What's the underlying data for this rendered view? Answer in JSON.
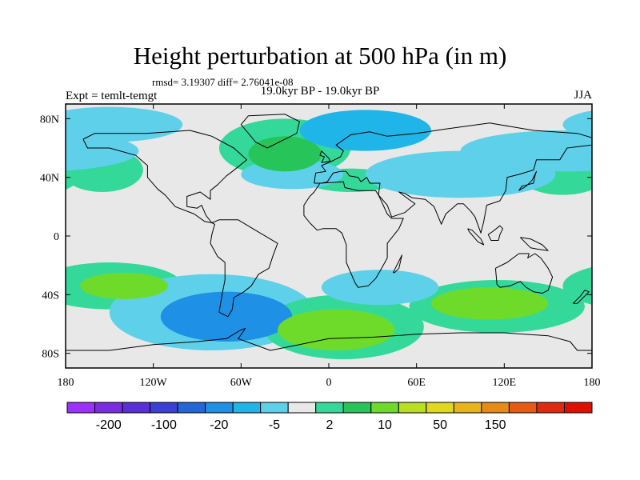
{
  "chart_data": {
    "type": "heatmap",
    "title": "Height perturbation at 500 hPa (in m)",
    "stats_text": "rmsd= 3.19307 diff= 2.76041e-08",
    "left_label": "Expt = temlt-temgt",
    "center_label": "19.0kyr BP - 19.0kyr BP",
    "right_label": "JJA",
    "x_ticks": [
      "180",
      "120W",
      "60W",
      "0",
      "60E",
      "120E",
      "180"
    ],
    "x_tick_values": [
      -180,
      -120,
      -60,
      0,
      60,
      120,
      180
    ],
    "y_ticks": [
      "80N",
      "40N",
      "0",
      "40S",
      "80S"
    ],
    "y_tick_values": [
      80,
      40,
      0,
      -40,
      -80
    ],
    "xlim": [
      -180,
      180
    ],
    "ylim": [
      -90,
      90
    ],
    "colorbar": {
      "colors": [
        "#9b30ff",
        "#7b2be0",
        "#5a2ed8",
        "#3a40d6",
        "#2266d8",
        "#1e90e6",
        "#1fb5e8",
        "#5fd0ea",
        "#e8e8e8",
        "#34d99a",
        "#27c45a",
        "#6edb2a",
        "#b8e020",
        "#e0d81c",
        "#e8b419",
        "#e88a17",
        "#e85a14",
        "#e02a10",
        "#e01000"
      ],
      "labels": [
        "-200",
        "-100",
        "-20",
        "-5",
        "2",
        "10",
        "50",
        "150"
      ]
    },
    "anomalies": [
      {
        "lon": -140,
        "lat": -34,
        "rx": 30,
        "ry": 9,
        "level": 3
      },
      {
        "lon": -150,
        "lat": -34,
        "rx": 50,
        "ry": 16,
        "level": 1
      },
      {
        "lon": -70,
        "lat": -55,
        "rx": 45,
        "ry": 17,
        "level": -3
      },
      {
        "lon": -80,
        "lat": -52,
        "rx": 70,
        "ry": 26,
        "level": -1
      },
      {
        "lon": 5,
        "lat": -64,
        "rx": 40,
        "ry": 14,
        "level": 3
      },
      {
        "lon": 10,
        "lat": -62,
        "rx": 55,
        "ry": 22,
        "level": 1
      },
      {
        "lon": 110,
        "lat": -46,
        "rx": 40,
        "ry": 11,
        "level": 3
      },
      {
        "lon": 115,
        "lat": -48,
        "rx": 60,
        "ry": 18,
        "level": 1
      },
      {
        "lon": 35,
        "lat": -35,
        "rx": 40,
        "ry": 12,
        "level": -1
      },
      {
        "lon": -30,
        "lat": 56,
        "rx": 25,
        "ry": 12,
        "level": 2
      },
      {
        "lon": -30,
        "lat": 60,
        "rx": 45,
        "ry": 20,
        "level": 1
      },
      {
        "lon": 15,
        "lat": 38,
        "rx": 30,
        "ry": 8,
        "level": 1
      },
      {
        "lon": -155,
        "lat": 45,
        "rx": 28,
        "ry": 15,
        "level": 1
      },
      {
        "lon": 160,
        "lat": 42,
        "rx": 30,
        "ry": 14,
        "level": 1
      },
      {
        "lon": -25,
        "lat": 42,
        "rx": 35,
        "ry": 10,
        "level": -1
      },
      {
        "lon": 25,
        "lat": 72,
        "rx": 45,
        "ry": 14,
        "level": -2
      },
      {
        "lon": 90,
        "lat": 42,
        "rx": 65,
        "ry": 16,
        "level": -1
      },
      {
        "lon": 160,
        "lat": 58,
        "rx": 70,
        "ry": 14,
        "level": -1
      },
      {
        "lon": -150,
        "lat": 76,
        "rx": 50,
        "ry": 12,
        "level": -1
      }
    ]
  }
}
